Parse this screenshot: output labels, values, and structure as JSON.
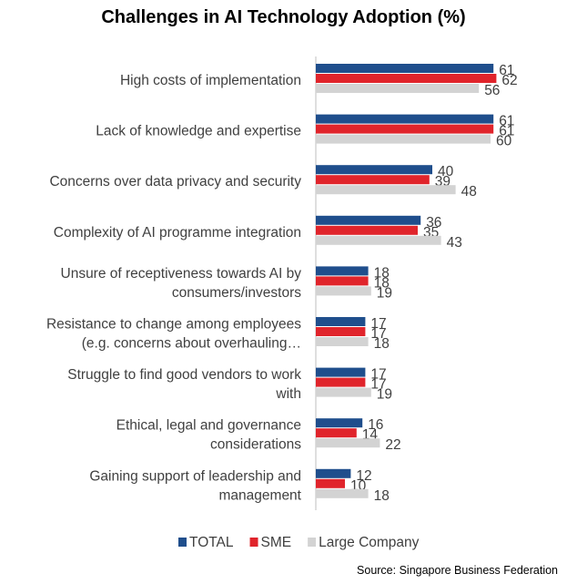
{
  "chart_data": {
    "type": "bar",
    "orientation": "horizontal",
    "title": "Challenges in AI Technology Adoption (%)",
    "xlabel": "",
    "ylabel": "",
    "xlim": [
      0,
      70
    ],
    "grid": false,
    "legend_position": "bottom",
    "categories": [
      [
        "High costs of implementation"
      ],
      [
        "Lack of knowledge and expertise"
      ],
      [
        "Concerns over data privacy and security"
      ],
      [
        "Complexity of AI programme integration"
      ],
      [
        "Unsure of receptiveness towards AI by",
        "consumers/investors"
      ],
      [
        "Resistance to change among employees",
        "(e.g. concerns about overhauling…"
      ],
      [
        "Struggle to find good vendors to work",
        "with"
      ],
      [
        "Ethical, legal and governance",
        "considerations"
      ],
      [
        "Gaining support of leadership and",
        "management"
      ]
    ],
    "series": [
      {
        "name": "TOTAL",
        "color": "#1f4e8c",
        "values": [
          61,
          61,
          40,
          36,
          18,
          17,
          17,
          16,
          12
        ]
      },
      {
        "name": "SME",
        "color": "#e0242b",
        "values": [
          62,
          61,
          39,
          35,
          18,
          17,
          17,
          14,
          10
        ]
      },
      {
        "name": "Large Company",
        "color": "#d3d3d3",
        "values": [
          56,
          60,
          48,
          43,
          19,
          18,
          19,
          22,
          18
        ]
      }
    ]
  },
  "source": "Source: Singapore Business Federation"
}
